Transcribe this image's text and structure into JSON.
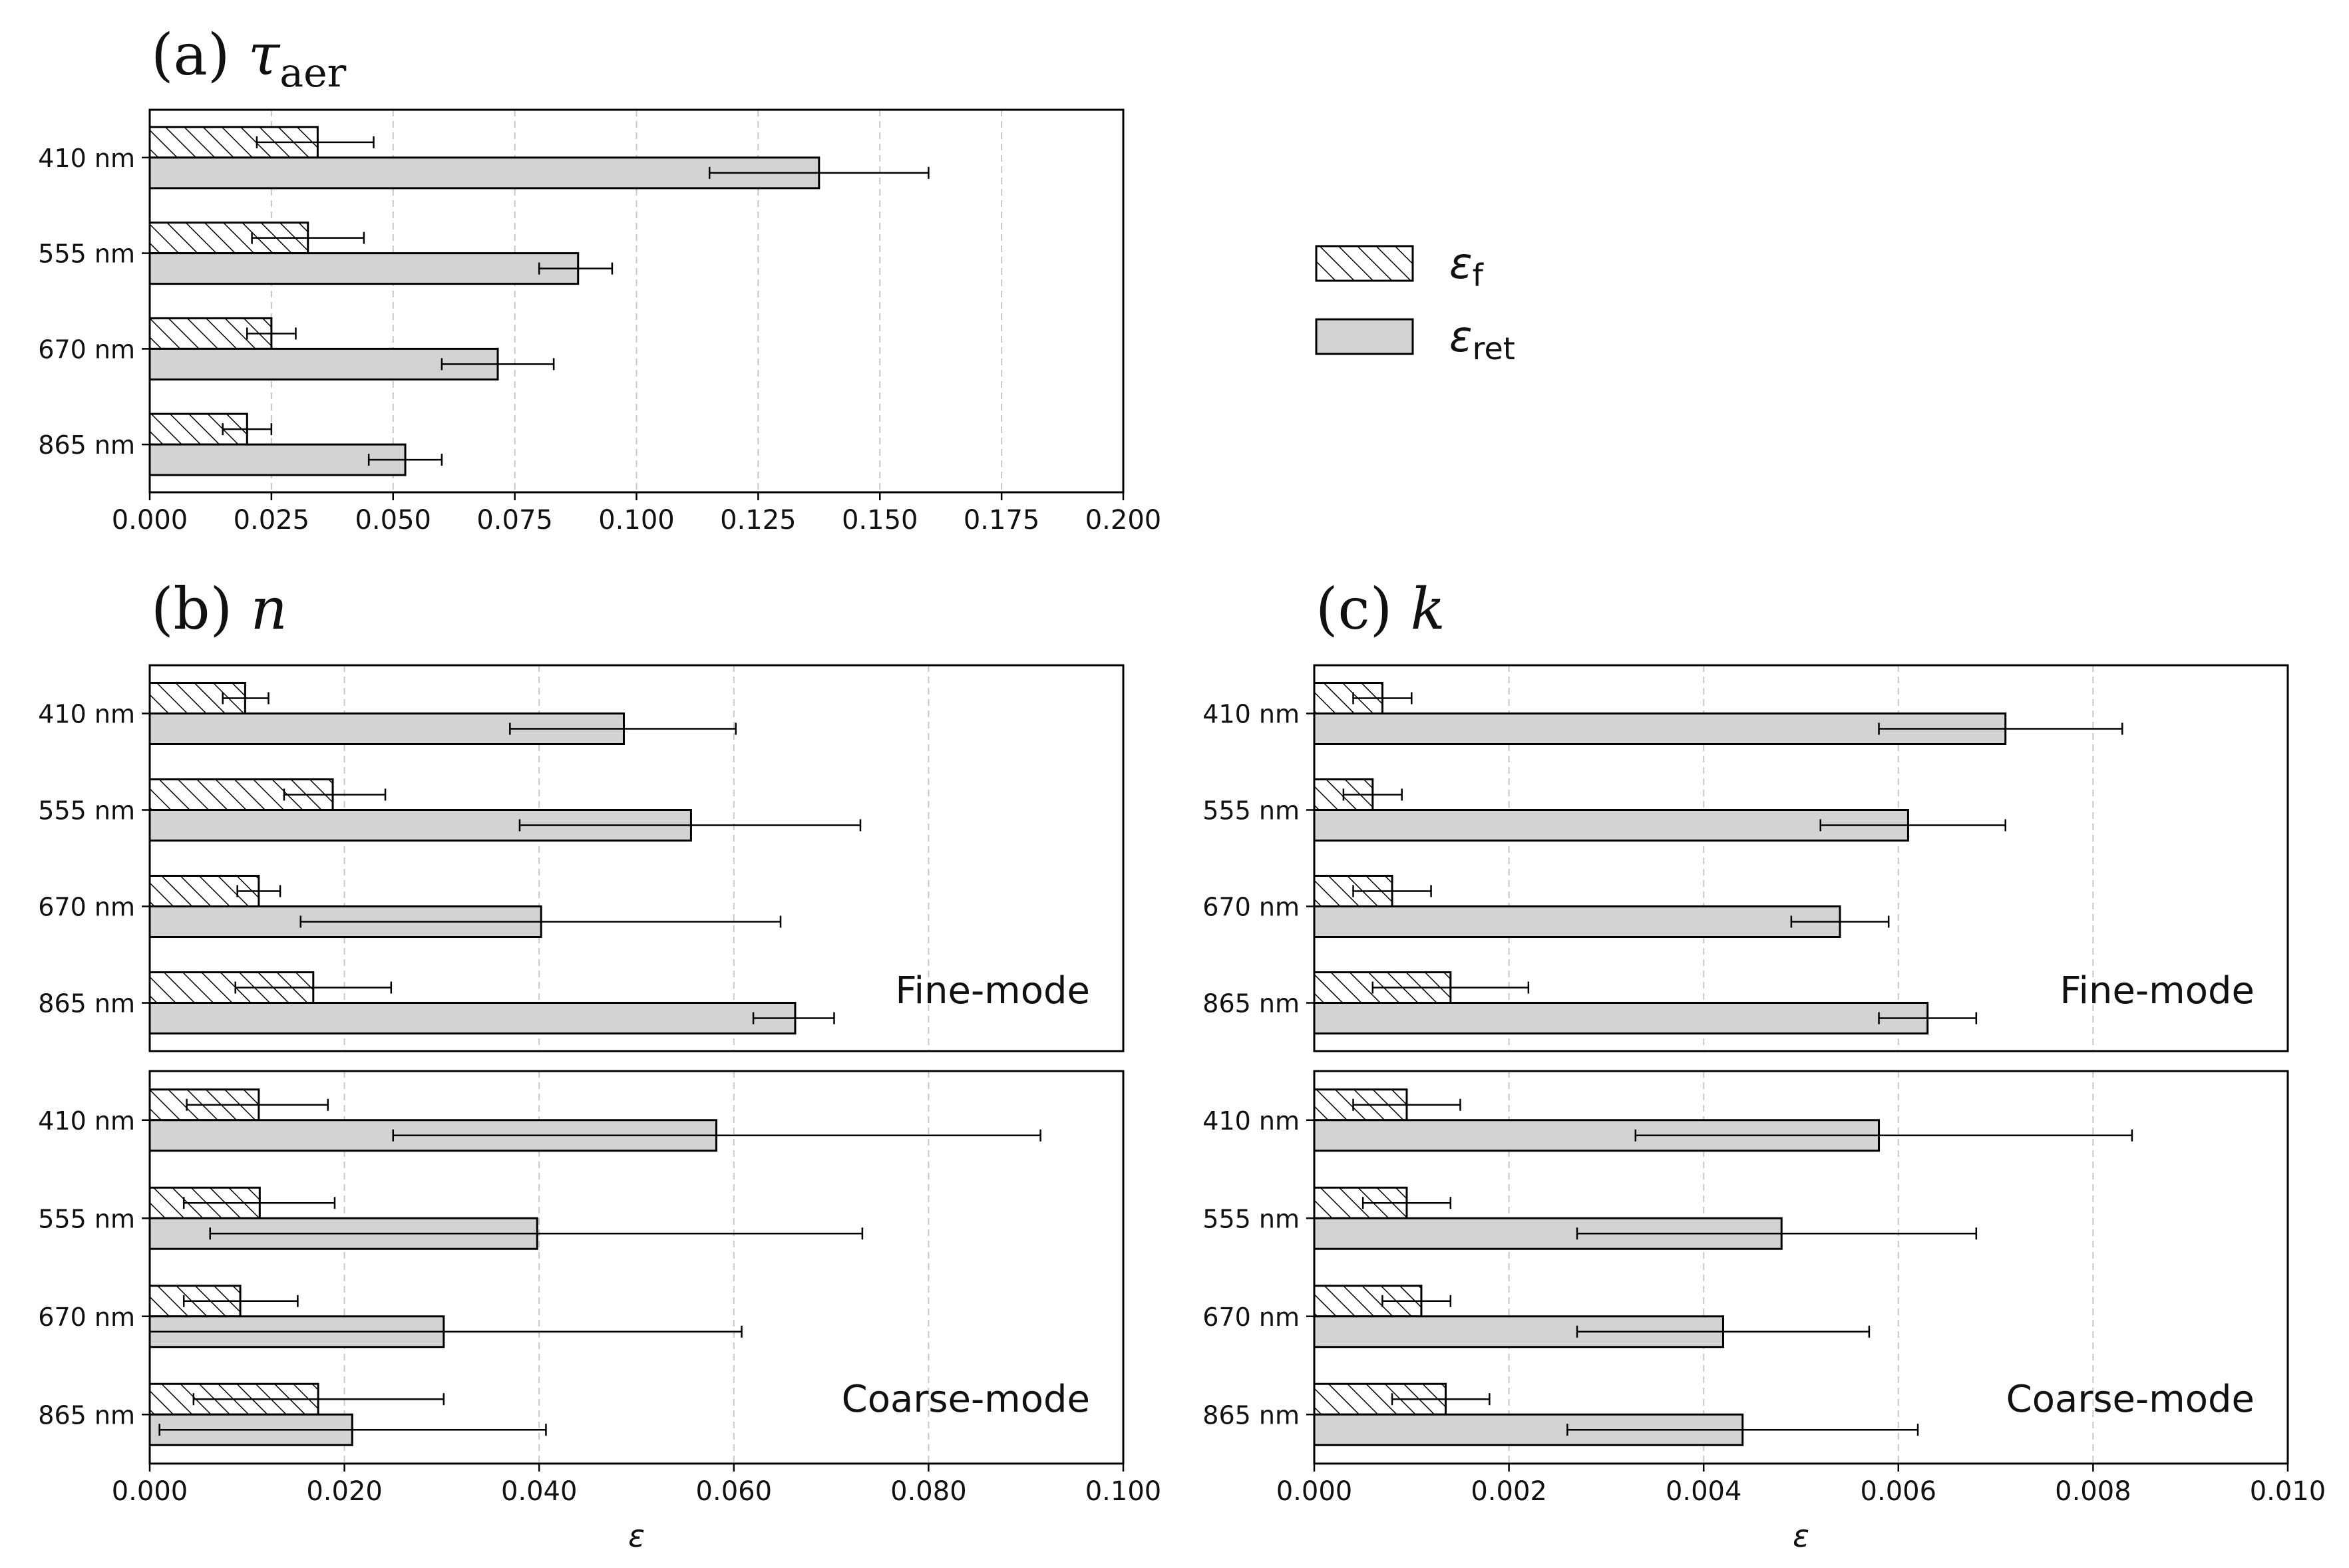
{
  "legend": {
    "items": [
      {
        "symbol": "ε",
        "subscript": "f",
        "style": "hatched"
      },
      {
        "symbol": "ε",
        "subscript": "ret",
        "style": "filled"
      }
    ]
  },
  "colors": {
    "bar_fill": "#d3d3d3",
    "edge": "#000000",
    "grid": "#c8c8c8"
  },
  "chart_data": [
    {
      "id": "a",
      "type": "bar",
      "orientation": "horizontal",
      "title": "(a) τaer",
      "title_prefix": "(a) ",
      "title_var": "τ",
      "title_sub": "aer",
      "xlabel": "",
      "xlim": [
        0,
        0.2
      ],
      "xticks": [
        0.0,
        0.025,
        0.05,
        0.075,
        0.1,
        0.125,
        0.15,
        0.175,
        0.2
      ],
      "xtick_labels": [
        "0.000",
        "0.025",
        "0.050",
        "0.075",
        "0.100",
        "0.125",
        "0.150",
        "0.175",
        "0.200"
      ],
      "grid": true,
      "panels": [
        {
          "annotation": "",
          "categories": [
            "410 nm",
            "555 nm",
            "670 nm",
            "865 nm"
          ],
          "series": [
            {
              "name": "εf",
              "values": [
                0.0345,
                0.0325,
                0.025,
                0.02
              ],
              "err_low": [
                0.022,
                0.021,
                0.02,
                0.015
              ],
              "err_high": [
                0.046,
                0.044,
                0.03,
                0.025
              ]
            },
            {
              "name": "εret",
              "values": [
                0.1375,
                0.088,
                0.0715,
                0.0525
              ],
              "err_low": [
                0.115,
                0.08,
                0.06,
                0.045
              ],
              "err_high": [
                0.16,
                0.095,
                0.083,
                0.06
              ]
            }
          ]
        }
      ]
    },
    {
      "id": "b",
      "type": "bar",
      "orientation": "horizontal",
      "title": "(b) n",
      "title_prefix": "(b) ",
      "title_var": "n",
      "title_sub": "",
      "xlabel": "ε",
      "xlim": [
        0,
        0.1
      ],
      "xticks": [
        0.0,
        0.02,
        0.04,
        0.06,
        0.08,
        0.1
      ],
      "xtick_labels": [
        "0.000",
        "0.020",
        "0.040",
        "0.060",
        "0.080",
        "0.100"
      ],
      "grid": true,
      "panels": [
        {
          "annotation": "Fine-mode",
          "categories": [
            "410 nm",
            "555 nm",
            "670 nm",
            "865 nm"
          ],
          "series": [
            {
              "name": "εf",
              "values": [
                0.0098,
                0.0188,
                0.0112,
                0.0168
              ],
              "err_low": [
                0.0075,
                0.0138,
                0.009,
                0.0088
              ],
              "err_high": [
                0.0122,
                0.0242,
                0.0134,
                0.0248
              ]
            },
            {
              "name": "εret",
              "values": [
                0.0487,
                0.0556,
                0.0402,
                0.0663
              ],
              "err_low": [
                0.037,
                0.038,
                0.0155,
                0.062
              ],
              "err_high": [
                0.0602,
                0.073,
                0.0648,
                0.0703
              ]
            }
          ]
        },
        {
          "annotation": "Coarse-mode",
          "categories": [
            "410 nm",
            "555 nm",
            "670 nm",
            "865 nm"
          ],
          "series": [
            {
              "name": "εf",
              "values": [
                0.0112,
                0.0113,
                0.0093,
                0.0173
              ],
              "err_low": [
                0.0038,
                0.0035,
                0.0035,
                0.0045
              ],
              "err_high": [
                0.0183,
                0.019,
                0.0152,
                0.0302
              ]
            },
            {
              "name": "εret",
              "values": [
                0.0582,
                0.0398,
                0.0302,
                0.0208
              ],
              "err_low": [
                0.025,
                0.0062,
                0.0,
                0.001
              ],
              "err_high": [
                0.0915,
                0.0732,
                0.0608,
                0.0407
              ]
            }
          ]
        }
      ]
    },
    {
      "id": "c",
      "type": "bar",
      "orientation": "horizontal",
      "title": "(c) k",
      "title_prefix": "(c) ",
      "title_var": "k",
      "title_sub": "",
      "xlabel": "ε",
      "xlim": [
        0,
        0.01
      ],
      "xticks": [
        0.0,
        0.002,
        0.004,
        0.006,
        0.008,
        0.01
      ],
      "xtick_labels": [
        "0.000",
        "0.002",
        "0.004",
        "0.006",
        "0.008",
        "0.010"
      ],
      "grid": true,
      "panels": [
        {
          "annotation": "Fine-mode",
          "categories": [
            "410 nm",
            "555 nm",
            "670 nm",
            "865 nm"
          ],
          "series": [
            {
              "name": "εf",
              "values": [
                0.0007,
                0.0006,
                0.0008,
                0.0014
              ],
              "err_low": [
                0.0004,
                0.0003,
                0.0004,
                0.0006
              ],
              "err_high": [
                0.001,
                0.0009,
                0.0012,
                0.0022
              ]
            },
            {
              "name": "εret",
              "values": [
                0.0071,
                0.0061,
                0.0054,
                0.0063
              ],
              "err_low": [
                0.0058,
                0.0052,
                0.0049,
                0.0058
              ],
              "err_high": [
                0.0083,
                0.0071,
                0.0059,
                0.0068
              ]
            }
          ]
        },
        {
          "annotation": "Coarse-mode",
          "categories": [
            "410 nm",
            "555 nm",
            "670 nm",
            "865 nm"
          ],
          "series": [
            {
              "name": "εf",
              "values": [
                0.00095,
                0.00095,
                0.0011,
                0.00135
              ],
              "err_low": [
                0.0004,
                0.0005,
                0.0007,
                0.0008
              ],
              "err_high": [
                0.0015,
                0.0014,
                0.0014,
                0.0018
              ]
            },
            {
              "name": "εret",
              "values": [
                0.0058,
                0.0048,
                0.0042,
                0.0044
              ],
              "err_low": [
                0.0033,
                0.0027,
                0.0027,
                0.0026
              ],
              "err_high": [
                0.0084,
                0.0068,
                0.0057,
                0.0062
              ]
            }
          ]
        }
      ]
    }
  ]
}
